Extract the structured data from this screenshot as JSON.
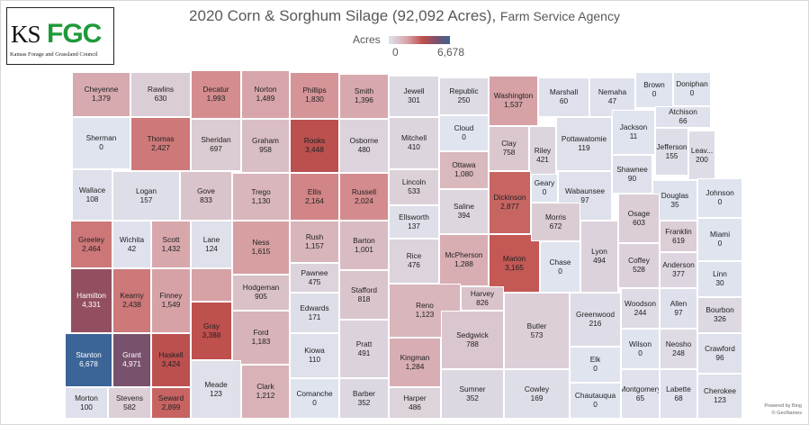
{
  "logo": {
    "abbr_ks": "KS",
    "abbr_fgc": "FGC",
    "full_name": "Kansas Forage and Grassland Council"
  },
  "title": {
    "main": "2020 Corn & Sorghum Silage (92,092 Acres),",
    "agency": "Farm Service Agency"
  },
  "legend": {
    "label": "Acres",
    "min": "0",
    "max": "6,678",
    "colors": [
      "#dfe3ee",
      "#c0504d",
      "#3b6497"
    ]
  },
  "counties": [
    {
      "name": "Cheyenne",
      "value": "1,379"
    },
    {
      "name": "Rawlins",
      "value": "630"
    },
    {
      "name": "Decatur",
      "value": "1,993"
    },
    {
      "name": "Norton",
      "value": "1,489"
    },
    {
      "name": "Phillips",
      "value": "1,830"
    },
    {
      "name": "Smith",
      "value": "1,396"
    },
    {
      "name": "Jewell",
      "value": "301"
    },
    {
      "name": "Republic",
      "value": "250"
    },
    {
      "name": "Washington",
      "value": "1,537"
    },
    {
      "name": "Marshall",
      "value": "60"
    },
    {
      "name": "Nemaha",
      "value": "47"
    },
    {
      "name": "Brown",
      "value": "0"
    },
    {
      "name": "Doniphan",
      "value": "0"
    },
    {
      "name": "Sherman",
      "value": "0"
    },
    {
      "name": "Thomas",
      "value": "2,427"
    },
    {
      "name": "Sheridan",
      "value": "697"
    },
    {
      "name": "Graham",
      "value": "958"
    },
    {
      "name": "Rooks",
      "value": "3,448"
    },
    {
      "name": "Osborne",
      "value": "480"
    },
    {
      "name": "Mitchell",
      "value": "410"
    },
    {
      "name": "Cloud",
      "value": "0"
    },
    {
      "name": "Clay",
      "value": "758"
    },
    {
      "name": "Riley",
      "value": "421"
    },
    {
      "name": "Pottawatomie",
      "value": "119"
    },
    {
      "name": "Jackson",
      "value": "11"
    },
    {
      "name": "Atchison",
      "value": "66"
    },
    {
      "name": "Jefferson",
      "value": "155"
    },
    {
      "name": "Leav...",
      "value": "200"
    },
    {
      "name": "Wallace",
      "value": "108"
    },
    {
      "name": "Logan",
      "value": "157"
    },
    {
      "name": "Gove",
      "value": "833"
    },
    {
      "name": "Trego",
      "value": "1,130"
    },
    {
      "name": "Ellis",
      "value": "2,164"
    },
    {
      "name": "Russell",
      "value": "2,024"
    },
    {
      "name": "Lincoln",
      "value": "533"
    },
    {
      "name": "Ottawa",
      "value": "1,080"
    },
    {
      "name": "Saline",
      "value": "394"
    },
    {
      "name": "Ellsworth",
      "value": "137"
    },
    {
      "name": "Dickinson",
      "value": "2,877"
    },
    {
      "name": "Geary",
      "value": "0"
    },
    {
      "name": "Wabaunsee",
      "value": "97"
    },
    {
      "name": "Shawnee",
      "value": "90"
    },
    {
      "name": "Douglas",
      "value": "35"
    },
    {
      "name": "Johnson",
      "value": "0"
    },
    {
      "name": "Greeley",
      "value": "2,464"
    },
    {
      "name": "Wichita",
      "value": "42"
    },
    {
      "name": "Scott",
      "value": "1,432"
    },
    {
      "name": "Lane",
      "value": "124"
    },
    {
      "name": "Ness",
      "value": "1,615"
    },
    {
      "name": "Rush",
      "value": "1,157"
    },
    {
      "name": "Barton",
      "value": "1,001"
    },
    {
      "name": "Rice",
      "value": "476"
    },
    {
      "name": "McPherson",
      "value": "1,288"
    },
    {
      "name": "Marion",
      "value": "3,165"
    },
    {
      "name": "Morris",
      "value": "672"
    },
    {
      "name": "Chase",
      "value": "0"
    },
    {
      "name": "Lyon",
      "value": "494"
    },
    {
      "name": "Osage",
      "value": "603"
    },
    {
      "name": "Franklin",
      "value": "619"
    },
    {
      "name": "Miami",
      "value": "0"
    },
    {
      "name": "Hamilton",
      "value": "4,331"
    },
    {
      "name": "Kearny",
      "value": "2,438"
    },
    {
      "name": "Finney",
      "value": "1,549"
    },
    {
      "name": "Hodgeman",
      "value": "905"
    },
    {
      "name": "Pawnee",
      "value": "475"
    },
    {
      "name": "Stafford",
      "value": "818"
    },
    {
      "name": "Reno",
      "value": "1,123"
    },
    {
      "name": "Harvey",
      "value": "826"
    },
    {
      "name": "Coffey",
      "value": "528"
    },
    {
      "name": "Anderson",
      "value": "377"
    },
    {
      "name": "Linn",
      "value": "30"
    },
    {
      "name": "Gray",
      "value": "3,388"
    },
    {
      "name": "Edwards",
      "value": "171"
    },
    {
      "name": "Ford",
      "value": "1,183"
    },
    {
      "name": "Kiowa",
      "value": "110"
    },
    {
      "name": "Pratt",
      "value": "491"
    },
    {
      "name": "Kingman",
      "value": "1,284"
    },
    {
      "name": "Sedgwick",
      "value": "788"
    },
    {
      "name": "Butler",
      "value": "573"
    },
    {
      "name": "Greenwood",
      "value": "216"
    },
    {
      "name": "Woodson",
      "value": "244"
    },
    {
      "name": "Allen",
      "value": "97"
    },
    {
      "name": "Bourbon",
      "value": "326"
    },
    {
      "name": "Stanton",
      "value": "6,678"
    },
    {
      "name": "Grant",
      "value": "4,971"
    },
    {
      "name": "Haskell",
      "value": "3,424"
    },
    {
      "name": "Morton",
      "value": "100"
    },
    {
      "name": "Stevens",
      "value": "582"
    },
    {
      "name": "Seward",
      "value": "2,899"
    },
    {
      "name": "Meade",
      "value": "123"
    },
    {
      "name": "Clark",
      "value": "1,212"
    },
    {
      "name": "Comanche",
      "value": "0"
    },
    {
      "name": "Barber",
      "value": "352"
    },
    {
      "name": "Harper",
      "value": "486"
    },
    {
      "name": "Sumner",
      "value": "352"
    },
    {
      "name": "Cowley",
      "value": "169"
    },
    {
      "name": "Elk",
      "value": "0"
    },
    {
      "name": "Chautauqua",
      "value": "0"
    },
    {
      "name": "Wilson",
      "value": "0"
    },
    {
      "name": "Montgomery",
      "value": "65"
    },
    {
      "name": "Neosho",
      "value": "248"
    },
    {
      "name": "Labette",
      "value": "68"
    },
    {
      "name": "Crawford",
      "value": "96"
    },
    {
      "name": "Cherokee",
      "value": "123"
    }
  ],
  "credit": {
    "line1": "Powered by Bing",
    "line2": "© GeoNames"
  }
}
